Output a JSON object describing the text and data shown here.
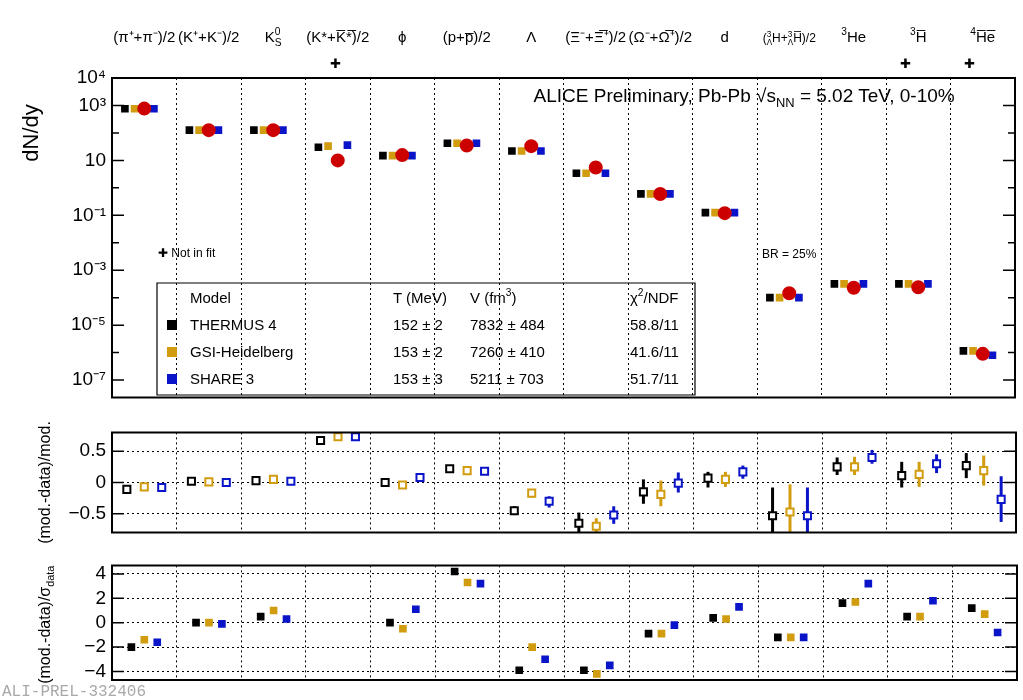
{
  "chart_data": [
    {
      "type": "scatter",
      "ylabel": "dN/dy",
      "log": true,
      "grid": "x",
      "legend": "bottom left",
      "marker": "square",
      "categories": [
        "(π⁺+π⁻)/2",
        "(K⁺+K⁻)/2",
        "K$^{0}$$_{S}$",
        "(K*+K̅*̅)/2",
        "ϕ",
        "(p+p̅)/2",
        "Λ",
        "(Ξ⁻+Ξ̅⁺)/2",
        "(Ω⁻+Ω̅⁺)/2",
        "d",
        "($^{3}$$_{Λ}$H+$^{3}$$_{Λ}$H̅)/2",
        "$^{3}$He",
        "$^{3}$H̅",
        "$^{4}$H̅e̅"
      ],
      "ylim": [
        2.3e-08,
        10000
      ],
      "yticks": [
        {
          "value": 10000,
          "label": "10⁴"
        },
        {
          "value": 1000,
          "label": "10³"
        },
        {
          "value": 100,
          "label": null
        },
        10,
        {
          "value": 1,
          "label": null
        },
        {
          "value": 0.1,
          "label": "10⁻¹"
        },
        {
          "value": 0.01,
          "label": null
        },
        {
          "value": 0.001,
          "label": "10⁻³"
        },
        {
          "value": 0.0001,
          "label": null
        },
        {
          "value": 1e-05,
          "label": "10⁻⁵"
        },
        {
          "value": 1e-06,
          "label": null
        },
        {
          "value": 1e-07,
          "label": "10⁻⁷"
        }
      ],
      "series": [
        {
          "color": "#cc0000",
          "marker": "circle",
          "values": [
            770,
            126,
            126,
            10,
            15.6,
            35,
            33,
            5.5,
            0.6,
            0.12,
            0.000145,
            0.00023,
            0.00024,
            9e-07
          ]
        },
        {
          "name": "THERMUS 4",
          "color": "#000000",
          "values": [
            760,
            126,
            126,
            30,
            15,
            42,
            22,
            3.4,
            0.6,
            0.125,
            0.0001,
            0.00032,
            0.00032,
            1.15e-06
          ]
        },
        {
          "name": "GSI-Heidelberg",
          "color": "#d19c0f",
          "values": [
            760,
            126,
            126,
            33,
            15,
            42,
            22,
            3.4,
            0.6,
            0.125,
            0.0001,
            0.00032,
            0.00032,
            1.15e-06
          ]
        },
        {
          "name": "SHARE 3",
          "color": "#0a14c8",
          "values": [
            760,
            126,
            126,
            36,
            15,
            42,
            22,
            3.4,
            0.6,
            0.125,
            0.0001,
            0.00032,
            0.00032,
            8e-07
          ]
        }
      ],
      "annotations": [
        "ALICE Preliminary, Pb-Pb √s$_{NN}$ = 5.02 TeV, 0-10%",
        "✚ Not in fit",
        "BR = 25%",
        "✚",
        "✚",
        "✚",
        "Model",
        "T (MeV)",
        "V (fm$^{3}$)",
        "χ$^{2}$/NDF",
        "152 ± 2",
        "7832 ± 484",
        "58.8/11",
        "153 ± 2",
        "7260 ± 410",
        "41.6/11",
        "153 ± 3",
        "5211 ± 703",
        "51.7/11"
      ]
    },
    {
      "type": "scatter",
      "ylabel": "(mod.-data)/mod.",
      "grid": true,
      "marker": "square",
      "categories": [
        null,
        null,
        null,
        null,
        null,
        null,
        null,
        null,
        null,
        null,
        null,
        null,
        null,
        null
      ],
      "ylim": [
        -0.8,
        0.8
      ],
      "yticks": [
        0.5,
        0,
        {
          "value": -0.5,
          "label": "−0.5"
        }
      ],
      "series": [
        {
          "color": "#000000",
          "values": [
            -0.11,
            0.02,
            0.03,
            0.67,
            0.0,
            0.22,
            -0.45,
            -0.65,
            -0.15,
            0.07,
            -0.53,
            0.25,
            0.11,
            0.27
          ],
          "errors": [
            null,
            null,
            null,
            null,
            null,
            null,
            [
              -0.52,
              -0.38
            ],
            [
              -0.8,
              -0.48
            ],
            [
              -0.34,
              0.05
            ],
            [
              -0.08,
              0.17
            ],
            [
              -0.8,
              -0.08
            ],
            [
              0.12,
              0.4
            ],
            [
              -0.08,
              0.33
            ],
            [
              0.07,
              0.47
            ]
          ]
        },
        {
          "color": "#d19c0f",
          "values": [
            -0.07,
            0.01,
            0.05,
            0.73,
            -0.04,
            0.19,
            -0.17,
            -0.7,
            -0.19,
            0.05,
            -0.47,
            0.25,
            0.13,
            0.19
          ],
          "errors": [
            null,
            null,
            null,
            null,
            null,
            null,
            [
              -0.24,
              -0.11
            ],
            [
              -0.8,
              -0.57
            ],
            [
              -0.38,
              0.03
            ],
            [
              -0.07,
              0.17
            ],
            [
              -0.8,
              -0.03
            ],
            [
              0.12,
              0.41
            ],
            [
              -0.07,
              0.33
            ],
            [
              -0.05,
              0.43
            ]
          ]
        },
        {
          "color": "#0a14c8",
          "values": [
            -0.08,
            0.0,
            0.02,
            0.73,
            0.08,
            0.18,
            -0.3,
            -0.52,
            -0.01,
            0.17,
            -0.53,
            0.4,
            0.3,
            -0.27
          ],
          "errors": [
            null,
            null,
            null,
            null,
            [
              0.02,
              0.13
            ],
            null,
            [
              -0.4,
              -0.22
            ],
            [
              -0.66,
              -0.38
            ],
            [
              -0.16,
              0.16
            ],
            [
              0.06,
              0.27
            ],
            [
              -0.8,
              -0.08
            ],
            [
              0.3,
              0.52
            ],
            [
              0.15,
              0.45
            ],
            [
              -0.63,
              0.1
            ]
          ]
        }
      ]
    },
    {
      "type": "scatter",
      "ylabel": "(mod.-data)/σ$_{data}$",
      "grid": true,
      "marker": "square",
      "categories": [
        null,
        null,
        null,
        null,
        null,
        null,
        null,
        null,
        null,
        null,
        null,
        null,
        null,
        null
      ],
      "ylim": [
        -4.7,
        4.7
      ],
      "yticks": [
        4,
        2,
        0,
        {
          "value": -2,
          "label": "−2"
        },
        {
          "value": -4,
          "label": "−4"
        }
      ],
      "series": [
        {
          "color": "#000000",
          "values": [
            -2.0,
            0.0,
            0.5,
            null,
            0.0,
            4.2,
            -3.9,
            -3.9,
            -0.9,
            0.4,
            -1.2,
            1.6,
            0.5,
            1.2
          ]
        },
        {
          "color": "#d19c0f",
          "values": [
            -1.4,
            0.0,
            1.0,
            null,
            -0.5,
            3.3,
            -2.0,
            -4.2,
            -0.9,
            0.3,
            -1.2,
            1.7,
            0.5,
            0.7
          ]
        },
        {
          "color": "#0a14c8",
          "values": [
            -1.6,
            -0.1,
            0.3,
            null,
            1.1,
            3.2,
            -3.0,
            -3.5,
            -0.2,
            1.3,
            -1.2,
            3.2,
            1.8,
            -0.8
          ]
        }
      ],
      "annotations": [
        "ALI-PREL-332406"
      ]
    }
  ]
}
